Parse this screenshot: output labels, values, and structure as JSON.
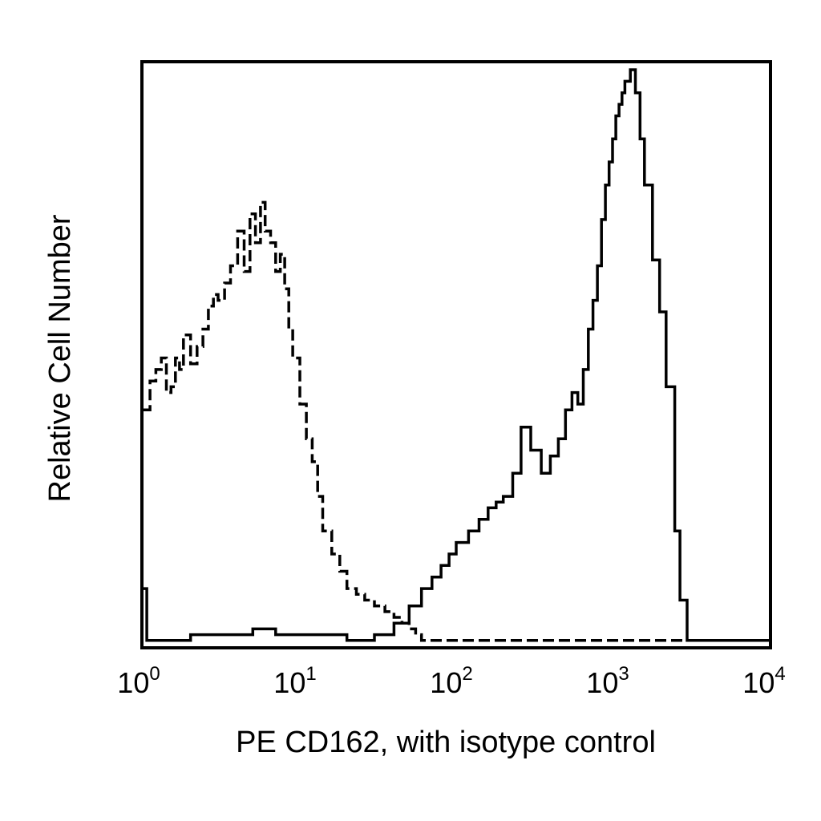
{
  "chart_data": {
    "type": "line",
    "title": "",
    "xlabel": "PE CD162, with isotype control",
    "ylabel": "Relative Cell Number",
    "xscale": "log",
    "xlim": [
      1,
      10000
    ],
    "ylim": [
      0,
      100
    ],
    "x_ticks": [
      {
        "base": "10",
        "exp": "0"
      },
      {
        "base": "10",
        "exp": "1"
      },
      {
        "base": "10",
        "exp": "2"
      },
      {
        "base": "10",
        "exp": "3"
      },
      {
        "base": "10",
        "exp": "4"
      }
    ],
    "y_ticks_shown": false,
    "grid": false,
    "legend": "none",
    "series": [
      {
        "style": "dashed",
        "color": "#000000",
        "x": [
          1.0,
          1.1,
          1.2,
          1.3,
          1.4,
          1.5,
          1.6,
          1.7,
          1.8,
          2.0,
          2.2,
          2.4,
          2.6,
          2.8,
          3.0,
          3.3,
          3.6,
          4.0,
          4.4,
          4.8,
          5.2,
          5.6,
          6.0,
          6.5,
          7.0,
          7.5,
          8.0,
          8.5,
          9.0,
          10.0,
          11.0,
          12.0,
          13.0,
          14.0,
          16.0,
          18.0,
          20.0,
          23.0,
          26.0,
          30.0,
          35.0,
          40.0,
          45.0,
          50.0,
          55.0,
          60.0,
          70.0,
          80.0,
          100.0,
          150.0,
          200.0,
          300.0,
          500.0,
          1000.0,
          2000.0,
          5000.0,
          10000.0
        ],
        "y": [
          41,
          46,
          48,
          50,
          44,
          45,
          50,
          48,
          54,
          49,
          52,
          55,
          59,
          61,
          60,
          63,
          66,
          72,
          65,
          75,
          70,
          77,
          72,
          70,
          65,
          68,
          62,
          55,
          50,
          42,
          36,
          32,
          26,
          20,
          16,
          13,
          10,
          9,
          8,
          7,
          6,
          5,
          4,
          3,
          2,
          1,
          1,
          1,
          1,
          1,
          1,
          1,
          1,
          1,
          1,
          1,
          1
        ]
      },
      {
        "style": "solid",
        "color": "#000000",
        "x": [
          1.0,
          1.05,
          1.2,
          1.5,
          2.0,
          3.0,
          5.0,
          7.0,
          10.0,
          20.0,
          30.0,
          40.0,
          50.0,
          60.0,
          70.0,
          80.0,
          90.0,
          100.0,
          120.0,
          140.0,
          160.0,
          180.0,
          200.0,
          230.0,
          260.0,
          300.0,
          350.0,
          400.0,
          450.0,
          500.0,
          550.0,
          600.0,
          650.0,
          700.0,
          750.0,
          800.0,
          850.0,
          900.0,
          950.0,
          1000.0,
          1050.0,
          1100.0,
          1150.0,
          1200.0,
          1300.0,
          1400.0,
          1500.0,
          1600.0,
          1800.0,
          2000.0,
          2200.0,
          2500.0,
          2700.0,
          3000.0,
          4000.0,
          5000.0,
          7000.0,
          10000.0
        ],
        "y": [
          10,
          1,
          1,
          1,
          2,
          2,
          3,
          2,
          2,
          1,
          2,
          4,
          7,
          10,
          12,
          14,
          16,
          18,
          20,
          22,
          24,
          25,
          26,
          30,
          38,
          34,
          30,
          33,
          36,
          41,
          44,
          42,
          48,
          55,
          60,
          66,
          74,
          80,
          84,
          88,
          92,
          94,
          96,
          98,
          100,
          96,
          88,
          80,
          67,
          58,
          45,
          20,
          8,
          1,
          1,
          1,
          1,
          1
        ]
      }
    ]
  }
}
